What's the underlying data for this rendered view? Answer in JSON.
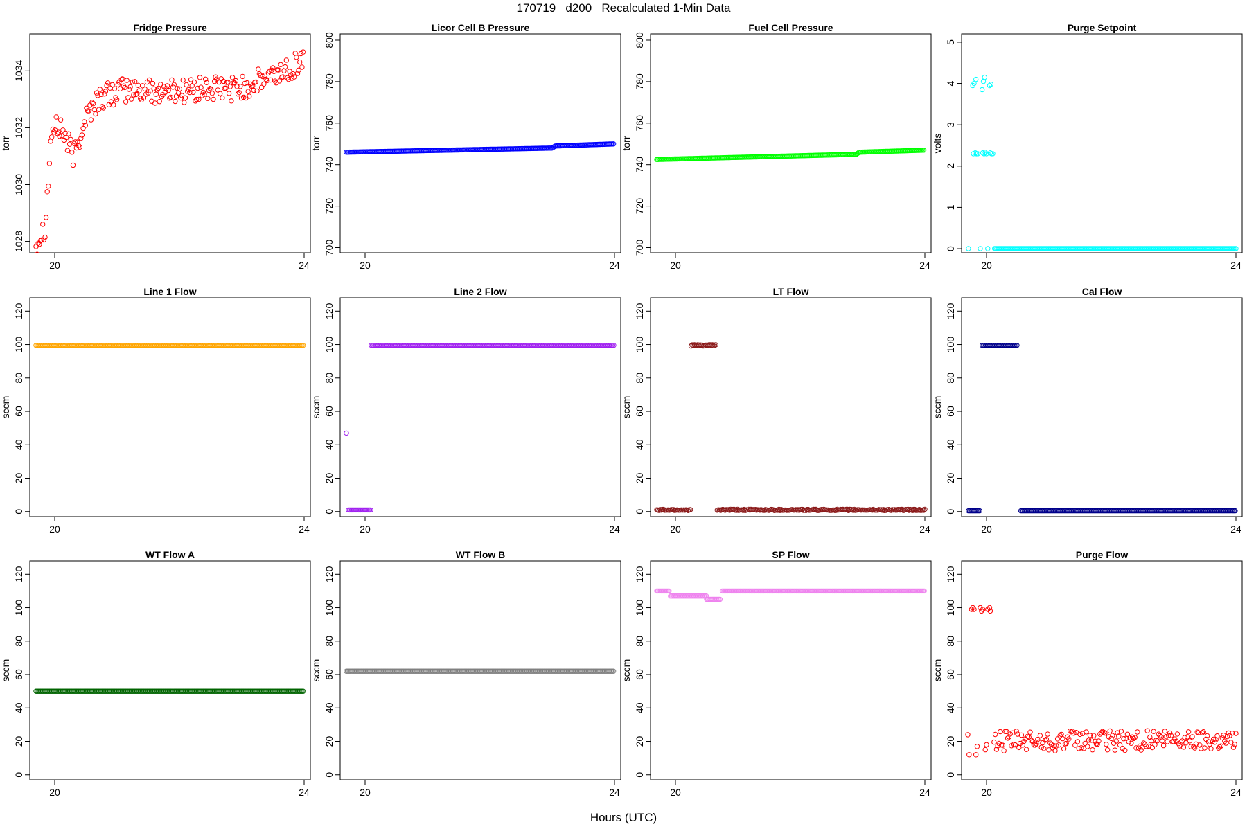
{
  "figure": {
    "title": "170719   d200   Recalculated 1-Min Data",
    "xlabel": "Hours (UTC)"
  },
  "chart_data": [
    {
      "type": "scatter",
      "title": "Fridge Pressure",
      "ylabel": "torr",
      "xlim": [
        19.6,
        24.1
      ],
      "ylim": [
        1027.6,
        1035.3
      ],
      "xticks": [
        20,
        24
      ],
      "yticks": [
        1028,
        1030,
        1032,
        1034
      ],
      "color": "#ff0000",
      "marker": "open-circle",
      "pattern": {
        "kind": "noisy",
        "segments": [
          [
            19.7,
            1027.9
          ],
          [
            19.85,
            1028.6
          ],
          [
            19.95,
            1031.9
          ],
          [
            20.1,
            1032.0
          ],
          [
            20.3,
            1031.0
          ],
          [
            20.5,
            1032.4
          ],
          [
            20.7,
            1033.0
          ],
          [
            21.0,
            1033.3
          ],
          [
            22.0,
            1033.3
          ],
          [
            23.0,
            1033.4
          ],
          [
            23.5,
            1033.8
          ],
          [
            24.0,
            1034.4
          ]
        ],
        "noise": 0.45,
        "step": 0.018
      }
    },
    {
      "type": "scatter",
      "title": "Licor Cell B Pressure",
      "ylabel": "torr",
      "xlim": [
        19.6,
        24.1
      ],
      "ylim": [
        697.5,
        803
      ],
      "xticks": [
        20,
        24
      ],
      "yticks": [
        700,
        720,
        740,
        760,
        780,
        800
      ],
      "color": "#0000ff",
      "marker": "open-circle",
      "pattern": {
        "kind": "line",
        "segments": [
          [
            19.7,
            746.0
          ],
          [
            23.0,
            748.0
          ],
          [
            23.05,
            749.0
          ],
          [
            24.0,
            750.0
          ]
        ],
        "step": 0.018
      }
    },
    {
      "type": "scatter",
      "title": "Fuel Cell Pressure",
      "ylabel": "torr",
      "xlim": [
        19.6,
        24.1
      ],
      "ylim": [
        697.5,
        803
      ],
      "xticks": [
        20,
        24
      ],
      "yticks": [
        700,
        720,
        740,
        760,
        780,
        800
      ],
      "color": "#00ff00",
      "marker": "open-circle",
      "pattern": {
        "kind": "line",
        "segments": [
          [
            19.7,
            742.5
          ],
          [
            22.9,
            745.0
          ],
          [
            22.95,
            746.0
          ],
          [
            24.0,
            747.0
          ]
        ],
        "step": 0.018
      }
    },
    {
      "type": "scatter",
      "title": "Purge Setpoint",
      "ylabel": "volts",
      "xlim": [
        19.6,
        24.1
      ],
      "ylim": [
        -0.1,
        5.2
      ],
      "xticks": [
        20,
        24
      ],
      "yticks": [
        0,
        1,
        2,
        3,
        4,
        5
      ],
      "color": "#00ffff",
      "marker": "open-circle",
      "points": [
        [
          19.71,
          0
        ],
        [
          19.78,
          3.95
        ],
        [
          19.79,
          2.3
        ],
        [
          19.8,
          4.0
        ],
        [
          19.82,
          2.32
        ],
        [
          19.83,
          4.1
        ],
        [
          19.84,
          2.3
        ],
        [
          19.86,
          2.3
        ],
        [
          19.9,
          0
        ],
        [
          19.93,
          3.85
        ],
        [
          19.94,
          2.32
        ],
        [
          19.95,
          4.05
        ],
        [
          19.96,
          2.3
        ],
        [
          19.97,
          4.15
        ],
        [
          19.98,
          2.33
        ],
        [
          20.0,
          2.3
        ],
        [
          20.02,
          0
        ],
        [
          20.05,
          3.95
        ],
        [
          20.06,
          2.32
        ],
        [
          20.07,
          3.98
        ],
        [
          20.08,
          2.3
        ],
        [
          20.1,
          2.3
        ]
      ],
      "pattern": {
        "kind": "line",
        "segments": [
          [
            20.13,
            0
          ],
          [
            24.0,
            0
          ]
        ],
        "step": 0.018
      }
    },
    {
      "type": "scatter",
      "title": "Line 1 Flow",
      "ylabel": "sccm",
      "xlim": [
        19.6,
        24.1
      ],
      "ylim": [
        -3,
        128
      ],
      "xticks": [
        20,
        24
      ],
      "yticks": [
        0,
        20,
        40,
        60,
        80,
        100,
        120
      ],
      "color": "#ffa500",
      "marker": "open-circle",
      "pattern": {
        "kind": "line",
        "segments": [
          [
            19.7,
            99.5
          ],
          [
            24.0,
            99.5
          ]
        ],
        "step": 0.018
      }
    },
    {
      "type": "scatter",
      "title": "Line 2 Flow",
      "ylabel": "sccm",
      "xlim": [
        19.6,
        24.1
      ],
      "ylim": [
        -3,
        128
      ],
      "xticks": [
        20,
        24
      ],
      "yticks": [
        0,
        20,
        40,
        60,
        80,
        100,
        120
      ],
      "color": "#a020f0",
      "marker": "open-circle",
      "points": [
        [
          19.7,
          47
        ]
      ],
      "pattern": {
        "kind": "steps",
        "segments": [
          [
            19.73,
            20.1,
            1.0
          ],
          [
            20.1,
            24.0,
            99.5
          ]
        ],
        "step": 0.018
      }
    },
    {
      "type": "scatter",
      "title": "LT Flow",
      "ylabel": "sccm",
      "xlim": [
        19.6,
        24.1
      ],
      "ylim": [
        -3,
        128
      ],
      "xticks": [
        20,
        24
      ],
      "yticks": [
        0,
        20,
        40,
        60,
        80,
        100,
        120
      ],
      "color": "#8b1a1a",
      "marker": "open-circle",
      "pattern": {
        "kind": "steps",
        "segments": [
          [
            19.7,
            20.25,
            1.0
          ],
          [
            20.25,
            20.65,
            99.5
          ],
          [
            20.67,
            24.0,
            1.0
          ]
        ],
        "step": 0.018,
        "noise": 0.4
      }
    },
    {
      "type": "scatter",
      "title": "Cal Flow",
      "ylabel": "sccm",
      "xlim": [
        19.6,
        24.1
      ],
      "ylim": [
        -3,
        128
      ],
      "xticks": [
        20,
        24
      ],
      "yticks": [
        0,
        20,
        40,
        60,
        80,
        100,
        120
      ],
      "color": "#00008b",
      "marker": "open-circle",
      "pattern": {
        "kind": "steps",
        "segments": [
          [
            19.71,
            19.9,
            0.5
          ],
          [
            19.93,
            20.5,
            99.5
          ],
          [
            20.55,
            24.0,
            0.5
          ]
        ],
        "step": 0.018
      }
    },
    {
      "type": "scatter",
      "title": "WT Flow A",
      "ylabel": "sccm",
      "xlim": [
        19.6,
        24.1
      ],
      "ylim": [
        -3,
        128
      ],
      "xticks": [
        20,
        24
      ],
      "yticks": [
        0,
        20,
        40,
        60,
        80,
        100,
        120
      ],
      "color": "#006400",
      "marker": "open-circle",
      "pattern": {
        "kind": "line",
        "segments": [
          [
            19.7,
            50
          ],
          [
            24.0,
            50
          ]
        ],
        "step": 0.018
      }
    },
    {
      "type": "scatter",
      "title": "WT Flow B",
      "ylabel": "sccm",
      "xlim": [
        19.6,
        24.1
      ],
      "ylim": [
        -3,
        128
      ],
      "xticks": [
        20,
        24
      ],
      "yticks": [
        0,
        20,
        40,
        60,
        80,
        100,
        120
      ],
      "color": "#808080",
      "marker": "open-circle",
      "pattern": {
        "kind": "line",
        "segments": [
          [
            19.7,
            62
          ],
          [
            24.0,
            62
          ]
        ],
        "step": 0.018
      }
    },
    {
      "type": "scatter",
      "title": "SP Flow",
      "ylabel": "sccm",
      "xlim": [
        19.6,
        24.1
      ],
      "ylim": [
        -3,
        128
      ],
      "xticks": [
        20,
        24
      ],
      "yticks": [
        0,
        20,
        40,
        60,
        80,
        100,
        120
      ],
      "color": "#ee82ee",
      "marker": "open-circle",
      "pattern": {
        "kind": "steps",
        "segments": [
          [
            19.7,
            19.9,
            110
          ],
          [
            19.92,
            20.5,
            107
          ],
          [
            20.5,
            20.72,
            105
          ],
          [
            20.75,
            24.0,
            110
          ]
        ],
        "step": 0.018
      }
    },
    {
      "type": "scatter",
      "title": "Purge Flow",
      "ylabel": "sccm",
      "xlim": [
        19.6,
        24.1
      ],
      "ylim": [
        -3,
        128
      ],
      "xticks": [
        20,
        24
      ],
      "yticks": [
        0,
        20,
        40,
        60,
        80,
        100,
        120
      ],
      "color": "#ff0000",
      "marker": "open-circle",
      "points": [
        [
          19.7,
          24
        ],
        [
          19.72,
          12
        ],
        [
          19.76,
          99
        ],
        [
          19.78,
          100
        ],
        [
          19.8,
          99
        ],
        [
          19.83,
          12
        ],
        [
          19.85,
          17
        ],
        [
          19.9,
          100
        ],
        [
          19.92,
          98
        ],
        [
          19.94,
          99
        ],
        [
          19.98,
          15
        ],
        [
          20.0,
          18
        ],
        [
          20.02,
          99
        ],
        [
          20.05,
          100
        ],
        [
          20.06,
          98
        ]
      ],
      "pattern": {
        "kind": "noisy",
        "segments": [
          [
            20.12,
            20
          ],
          [
            24.0,
            21
          ]
        ],
        "noise": 6,
        "step": 0.02
      }
    }
  ]
}
